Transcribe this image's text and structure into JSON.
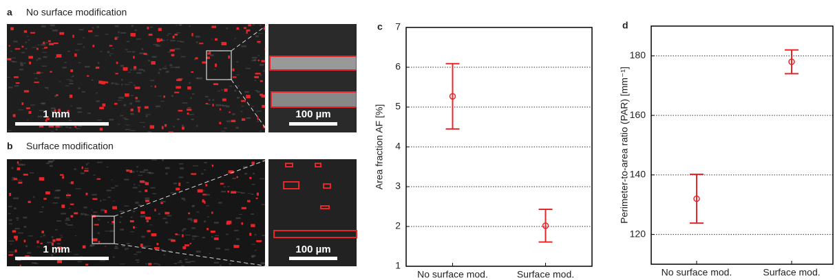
{
  "panels": {
    "a": {
      "label": "a",
      "title": "No surface modification",
      "scale_main": "1 mm",
      "scale_inset": "100 µm"
    },
    "b": {
      "label": "b",
      "title": "Surface modification",
      "scale_main": "1 mm",
      "scale_inset": "100 µm"
    }
  },
  "chart_data": [
    {
      "type": "errorbar",
      "panel_label": "c",
      "y_label": "Area fraction AF [%]",
      "categories": [
        "No surface mod.",
        "Surface mod."
      ],
      "values": [
        5.27,
        2.02
      ],
      "errors": [
        0.82,
        0.41
      ],
      "color": "#e8262a",
      "ylim": [
        1,
        7
      ],
      "yticks": [
        1,
        2,
        3,
        4,
        5,
        6,
        7
      ],
      "grid": true
    },
    {
      "type": "errorbar",
      "panel_label": "d",
      "y_label": "Perimeter-to-area ratio (PAR) [mm⁻¹]",
      "categories": [
        "No surface mod.",
        "Surface mod."
      ],
      "values": [
        132,
        178
      ],
      "errors": [
        8.2,
        4
      ],
      "color": "#e8262a",
      "ylim": [
        110,
        190
      ],
      "yticks": [
        120,
        140,
        160,
        180
      ],
      "grid": true
    }
  ]
}
